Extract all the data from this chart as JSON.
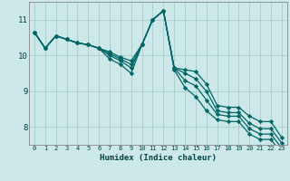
{
  "xlabel": "Humidex (Indice chaleur)",
  "bg_color": "#cce8e8",
  "grid_color": "#aacccc",
  "line_color": "#006666",
  "xlim": [
    -0.5,
    23.5
  ],
  "ylim": [
    7.5,
    11.5
  ],
  "yticks": [
    8,
    9,
    10,
    11
  ],
  "xticks": [
    0,
    1,
    2,
    3,
    4,
    5,
    6,
    7,
    8,
    9,
    10,
    11,
    12,
    13,
    14,
    15,
    16,
    17,
    18,
    19,
    20,
    21,
    22,
    23
  ],
  "series": [
    [
      10.65,
      10.2,
      10.55,
      10.45,
      10.35,
      10.3,
      10.2,
      10.1,
      9.95,
      9.85,
      10.3,
      11.0,
      11.25,
      9.65,
      9.6,
      9.55,
      9.2,
      8.6,
      8.55,
      8.55,
      8.3,
      8.15,
      8.15,
      7.7
    ],
    [
      10.65,
      10.2,
      10.55,
      10.45,
      10.35,
      10.3,
      10.2,
      10.05,
      9.9,
      9.75,
      10.3,
      11.0,
      11.25,
      9.65,
      9.5,
      9.35,
      9.0,
      8.45,
      8.4,
      8.4,
      8.1,
      7.95,
      7.95,
      7.55
    ],
    [
      10.65,
      10.2,
      10.55,
      10.45,
      10.35,
      10.3,
      10.2,
      10.0,
      9.85,
      9.65,
      10.3,
      11.0,
      11.25,
      9.65,
      9.3,
      9.15,
      8.75,
      8.35,
      8.3,
      8.3,
      7.95,
      7.8,
      7.8,
      7.4
    ],
    [
      10.65,
      10.2,
      10.55,
      10.45,
      10.35,
      10.3,
      10.2,
      9.9,
      9.75,
      9.5,
      10.3,
      11.0,
      11.25,
      9.6,
      9.1,
      8.85,
      8.45,
      8.2,
      8.15,
      8.15,
      7.8,
      7.65,
      7.65,
      7.25
    ]
  ],
  "marker": "D",
  "markersize": 2.2,
  "linewidth": 0.9
}
